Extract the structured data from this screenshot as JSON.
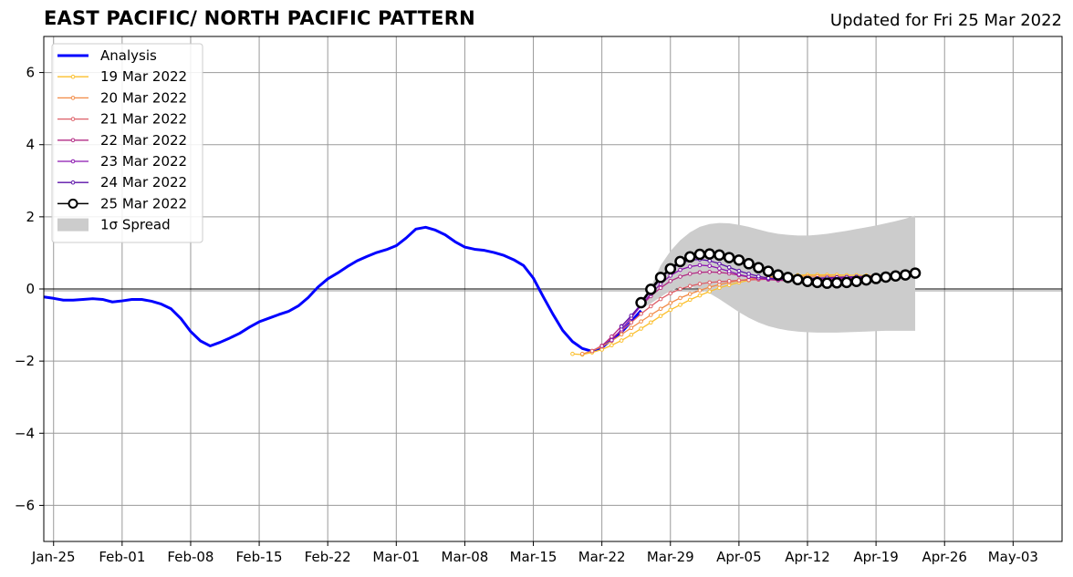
{
  "title": "EAST PACIFIC/ NORTH PACIFIC PATTERN",
  "subtitle": "Updated for Fri 25 Mar 2022",
  "chart_data": {
    "type": "line",
    "x_axis": {
      "type": "date",
      "range": [
        "2022-01-24",
        "2022-05-08"
      ],
      "tick_dates": [
        "2022-01-25",
        "2022-02-01",
        "2022-02-08",
        "2022-02-15",
        "2022-02-22",
        "2022-03-01",
        "2022-03-08",
        "2022-03-15",
        "2022-03-22",
        "2022-03-29",
        "2022-04-05",
        "2022-04-12",
        "2022-04-19",
        "2022-04-26",
        "2022-05-03"
      ],
      "tick_labels": [
        "Jan-25",
        "Feb-01",
        "Feb-08",
        "Feb-15",
        "Feb-22",
        "Mar-01",
        "Mar-08",
        "Mar-15",
        "Mar-22",
        "Mar-29",
        "Apr-05",
        "Apr-12",
        "Apr-19",
        "Apr-26",
        "May-03"
      ]
    },
    "y_axis": {
      "range": [
        -7,
        7
      ],
      "ticks": [
        -6,
        -4,
        -2,
        0,
        2,
        4,
        6
      ],
      "tick_labels": [
        "−6",
        "−4",
        "−2",
        "0",
        "2",
        "4",
        "6"
      ]
    },
    "grid": true,
    "zero_line": true,
    "legend_position": "upper-left",
    "analysis": {
      "name": "Analysis",
      "color": "#0000ff",
      "start": "2022-01-24",
      "values": [
        -0.22,
        -0.26,
        -0.31,
        -0.31,
        -0.29,
        -0.27,
        -0.29,
        -0.36,
        -0.33,
        -0.29,
        -0.29,
        -0.34,
        -0.42,
        -0.55,
        -0.82,
        -1.18,
        -1.44,
        -1.58,
        -1.48,
        -1.36,
        -1.23,
        -1.06,
        -0.91,
        -0.81,
        -0.71,
        -0.62,
        -0.47,
        -0.24,
        0.05,
        0.28,
        0.44,
        0.62,
        0.78,
        0.9,
        1.01,
        1.09,
        1.2,
        1.41,
        1.66,
        1.71,
        1.63,
        1.5,
        1.31,
        1.16,
        1.1,
        1.07,
        1.01,
        0.93,
        0.81,
        0.65,
        0.3,
        -0.21,
        -0.7,
        -1.15,
        -1.46,
        -1.65,
        -1.73,
        -1.63,
        -1.39,
        -1.2,
        -0.9,
        -0.6
      ]
    },
    "forecasts": [
      {
        "name": "19 Mar 2022",
        "color": "#fbbf2b",
        "start": "2022-03-19",
        "values": [
          -1.8,
          -1.82,
          -1.76,
          -1.68,
          -1.56,
          -1.43,
          -1.27,
          -1.1,
          -0.93,
          -0.75,
          -0.58,
          -0.44,
          -0.3,
          -0.18,
          -0.07,
          0.03,
          0.11,
          0.18,
          0.24,
          0.29,
          0.33,
          0.35,
          0.37,
          0.38,
          0.39,
          0.39,
          0.39,
          0.39,
          0.38,
          0.38,
          0.37,
          0.37,
          0.36,
          0.35
        ]
      },
      {
        "name": "20 Mar 2022",
        "color": "#f28a45",
        "start": "2022-03-20",
        "values": [
          -1.8,
          -1.72,
          -1.6,
          -1.44,
          -1.26,
          -1.08,
          -0.9,
          -0.72,
          -0.55,
          -0.39,
          -0.25,
          -0.14,
          -0.04,
          0.05,
          0.12,
          0.18,
          0.23,
          0.27,
          0.3,
          0.32,
          0.34,
          0.35,
          0.35,
          0.35,
          0.35,
          0.35,
          0.34,
          0.34,
          0.33,
          0.33,
          0.32,
          0.32
        ]
      },
      {
        "name": "21 Mar 2022",
        "color": "#dd5e67",
        "start": "2022-03-21",
        "values": [
          -1.72,
          -1.57,
          -1.36,
          -1.16,
          -0.93,
          -0.69,
          -0.48,
          -0.28,
          -0.12,
          0.0,
          0.08,
          0.14,
          0.18,
          0.2,
          0.22,
          0.24,
          0.25,
          0.26,
          0.27,
          0.28,
          0.28,
          0.28,
          0.29,
          0.29,
          0.29,
          0.29,
          0.29,
          0.29,
          0.29,
          0.29
        ]
      },
      {
        "name": "22 Mar 2022",
        "color": "#b32b84",
        "start": "2022-03-22",
        "values": [
          -1.58,
          -1.32,
          -1.03,
          -0.75,
          -0.47,
          -0.2,
          0.03,
          0.22,
          0.34,
          0.42,
          0.46,
          0.47,
          0.46,
          0.43,
          0.38,
          0.33,
          0.29,
          0.26,
          0.24,
          0.23,
          0.24,
          0.25,
          0.26,
          0.27,
          0.28,
          0.28,
          0.28,
          0.29,
          0.29,
          0.3
        ]
      },
      {
        "name": "23 Mar 2022",
        "color": "#8b16b0",
        "start": "2022-03-23",
        "values": [
          -1.42,
          -1.12,
          -0.8,
          -0.46,
          -0.14,
          0.14,
          0.37,
          0.53,
          0.62,
          0.66,
          0.64,
          0.57,
          0.49,
          0.4,
          0.34,
          0.3,
          0.28,
          0.27,
          0.26,
          0.27,
          0.28,
          0.29,
          0.3,
          0.3,
          0.31,
          0.32,
          0.33,
          0.34,
          0.35
        ]
      },
      {
        "name": "24 Mar 2022",
        "color": "#5c12a8",
        "start": "2022-03-24",
        "values": [
          -1.04,
          -0.74,
          -0.42,
          -0.05,
          0.28,
          0.54,
          0.71,
          0.8,
          0.82,
          0.78,
          0.7,
          0.6,
          0.5,
          0.42,
          0.35,
          0.3,
          0.28,
          0.27,
          0.28,
          0.29,
          0.3,
          0.31,
          0.32,
          0.33,
          0.34,
          0.35,
          0.36,
          0.37,
          0.38
        ]
      },
      {
        "name": "25 Mar 2022",
        "color": "#000000",
        "start": "2022-03-26",
        "marker": "open-circle",
        "values": [
          -0.38,
          -0.01,
          0.32,
          0.56,
          0.76,
          0.89,
          0.96,
          0.97,
          0.94,
          0.87,
          0.8,
          0.7,
          0.59,
          0.49,
          0.39,
          0.32,
          0.26,
          0.21,
          0.18,
          0.16,
          0.17,
          0.18,
          0.21,
          0.25,
          0.29,
          0.33,
          0.36,
          0.39,
          0.44
        ]
      }
    ],
    "spread": {
      "name": "1σ Spread",
      "color": "#cccccc",
      "start": "2022-03-26",
      "upper": [
        -0.55,
        0.05,
        0.65,
        1.05,
        1.35,
        1.57,
        1.72,
        1.8,
        1.83,
        1.82,
        1.78,
        1.72,
        1.65,
        1.58,
        1.53,
        1.5,
        1.48,
        1.48,
        1.5,
        1.53,
        1.57,
        1.61,
        1.66,
        1.71,
        1.76,
        1.82,
        1.88,
        1.95,
        2.03
      ],
      "lower": [
        -0.55,
        -0.4,
        -0.22,
        -0.05,
        0.05,
        0.06,
        0.0,
        -0.12,
        -0.28,
        -0.46,
        -0.64,
        -0.8,
        -0.93,
        -1.03,
        -1.1,
        -1.15,
        -1.18,
        -1.2,
        -1.21,
        -1.21,
        -1.21,
        -1.2,
        -1.19,
        -1.18,
        -1.17,
        -1.16,
        -1.16,
        -1.16,
        -1.16
      ]
    },
    "legend": [
      {
        "label": "Analysis",
        "kind": "analysis",
        "color": "#0000ff"
      },
      {
        "label": "19 Mar 2022",
        "kind": "dotline",
        "color": "#fbbf2b"
      },
      {
        "label": "20 Mar 2022",
        "kind": "dotline",
        "color": "#f28a45"
      },
      {
        "label": "21 Mar 2022",
        "kind": "dotline",
        "color": "#dd5e67"
      },
      {
        "label": "22 Mar 2022",
        "kind": "dotline",
        "color": "#b32b84"
      },
      {
        "label": "23 Mar 2022",
        "kind": "dotline",
        "color": "#8b16b0"
      },
      {
        "label": "24 Mar 2022",
        "kind": "dotline",
        "color": "#5c12a8"
      },
      {
        "label": "25 Mar 2022",
        "kind": "circle",
        "color": "#000000"
      },
      {
        "label": "1σ Spread",
        "kind": "patch",
        "color": "#cccccc"
      }
    ]
  }
}
